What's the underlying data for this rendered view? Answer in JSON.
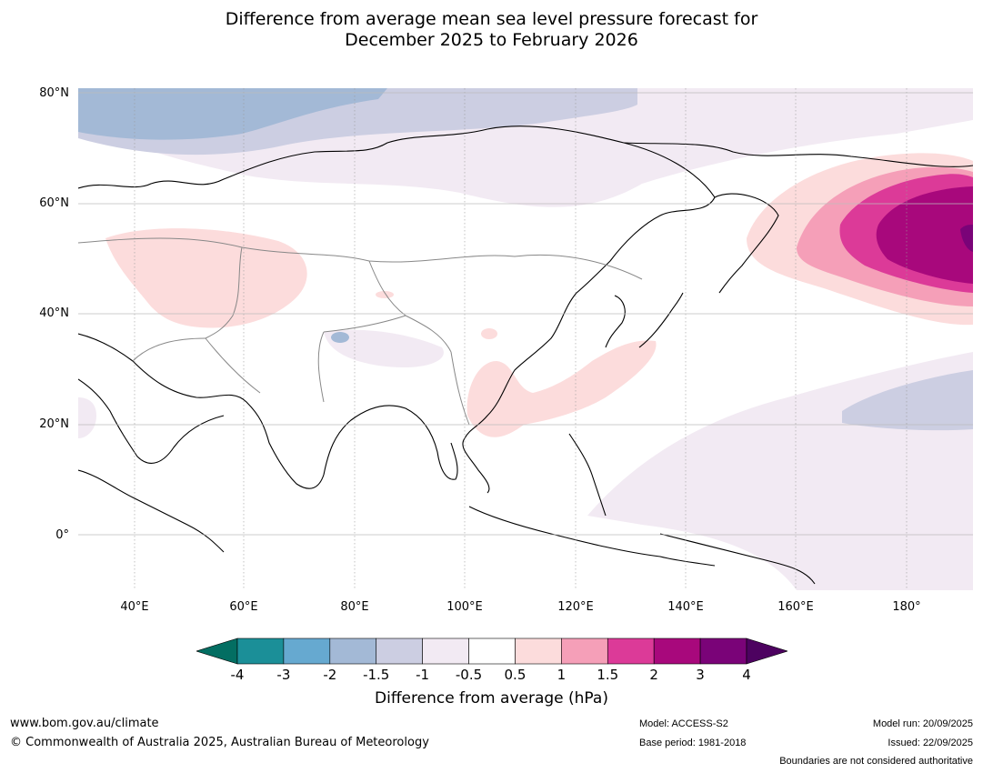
{
  "title": {
    "line1": "Difference from average mean sea level pressure forecast for",
    "line2": "December 2025 to February 2026"
  },
  "map": {
    "region": "Asia and Western Pacific",
    "lat_labels": [
      "80°N",
      "60°N",
      "40°N",
      "20°N",
      "0°"
    ],
    "lon_labels": [
      "40°E",
      "60°E",
      "80°E",
      "100°E",
      "120°E",
      "140°E",
      "160°E",
      "180°"
    ]
  },
  "colorbar": {
    "ticks": [
      "-4",
      "-3",
      "-2",
      "-1.5",
      "-1",
      "-0.5",
      "0.5",
      "1",
      "1.5",
      "2",
      "3",
      "4"
    ],
    "colors": [
      "#036e62",
      "#1b8f98",
      "#66a9d0",
      "#a3b9d6",
      "#cccee2",
      "#f2eaf3",
      "#ffffff",
      "#fcdcdc",
      "#f59fb8",
      "#dc3a98",
      "#a8087c",
      "#7a0378",
      "#4d0260"
    ],
    "label": "Difference from average (hPa)"
  },
  "footer": {
    "website": "www.bom.gov.au/climate",
    "copyright": "© Commonwealth of Australia 2025, Australian Bureau of Meteorology",
    "model": "Model: ACCESS-S2",
    "base_period": "Base period: 1981-2018",
    "model_run": "Model run: 20/09/2025",
    "issued": "Issued: 22/09/2025",
    "disclaimer": "Boundaries are not considered authoritative"
  }
}
